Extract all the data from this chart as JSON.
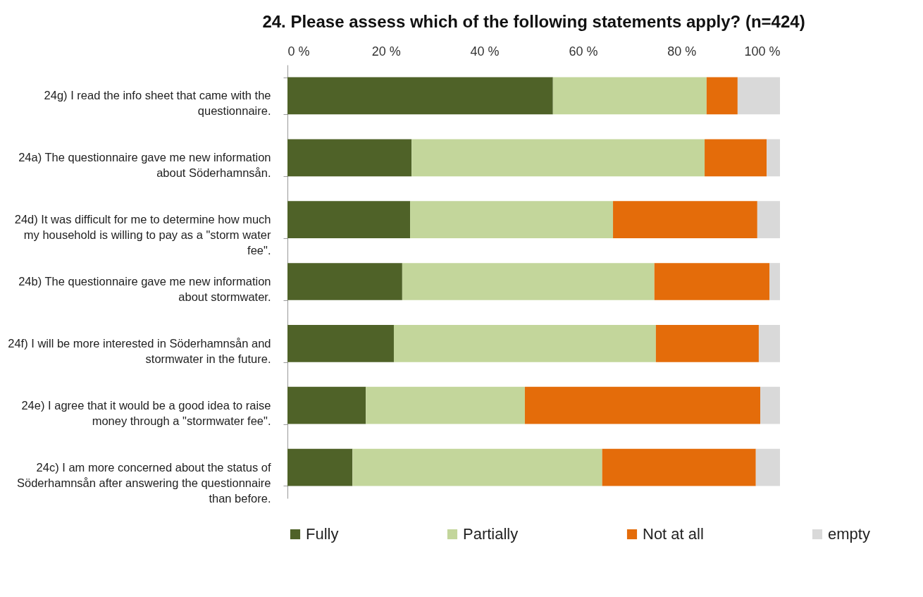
{
  "chart_data": {
    "type": "bar",
    "orientation": "horizontal",
    "stacked": true,
    "title": "24.  Please assess which of the following statements apply? (n=424)",
    "categories": [
      "24g) I read the info sheet that came with the questionnaire.",
      "24a) The questionnaire gave me new information about Söderhamnsån.",
      "24d) It was difficult for me to determine how much my household is willing to pay as a \"storm water fee\".",
      "24b) The questionnaire gave me new information about stormwater.",
      "24f) I will be more interested in Söderhamnsån and stormwater in the future.",
      "24e) I agree that it would be a good idea to raise money through a \"stormwater fee\".",
      "24c) I am more concerned about the status of Söderhamnsån after answering the questionnaire than before."
    ],
    "series": [
      {
        "name": "Fully",
        "color": "#4f6228",
        "values": [
          53.9,
          25.2,
          24.9,
          23.3,
          21.6,
          15.9,
          13.2
        ]
      },
      {
        "name": "Partially",
        "color": "#c3d69b",
        "values": [
          31.2,
          59.5,
          41.2,
          51.2,
          53.2,
          32.3,
          50.7
        ]
      },
      {
        "name": "Not at all",
        "color": "#e46c0a",
        "values": [
          6.3,
          12.6,
          29.3,
          23.4,
          20.9,
          47.8,
          31.2
        ]
      },
      {
        "name": "empty",
        "color": "#d9d9d9",
        "values": [
          8.6,
          2.7,
          4.6,
          2.1,
          4.3,
          4.0,
          4.9
        ]
      }
    ],
    "xlim": [
      0,
      100
    ],
    "xticks": [
      {
        "value": 0,
        "label": "0 %"
      },
      {
        "value": 20,
        "label": "20 %"
      },
      {
        "value": 40,
        "label": "40 %"
      },
      {
        "value": 60,
        "label": "60 %"
      },
      {
        "value": 80,
        "label": "80 %"
      },
      {
        "value": 100,
        "label": "100 %"
      }
    ],
    "grid": false,
    "legend": "bottom"
  }
}
